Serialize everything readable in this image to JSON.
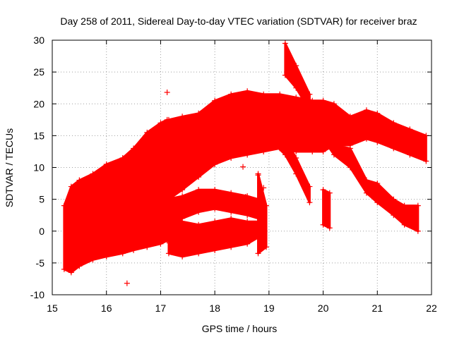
{
  "chart_data": {
    "type": "scatter",
    "title": "Day 258 of 2011, Sidereal Day-to-day VTEC variation (SDTVAR) for receiver braz",
    "xlabel": "GPS time / hours",
    "ylabel": "SDTVAR / TECUs",
    "xlim": [
      15,
      22
    ],
    "ylim": [
      -10,
      30
    ],
    "xticks": [
      "15",
      "16",
      "17",
      "18",
      "19",
      "20",
      "21",
      "22"
    ],
    "yticks": [
      "-10",
      "-5",
      "0",
      "5",
      "10",
      "15",
      "20",
      "25",
      "30"
    ],
    "grid": true,
    "legend": "none",
    "marker": "plus",
    "color": "#ff0000",
    "series": [
      {
        "bands": [
          [
            15.22,
            -6.0,
            4.0
          ],
          [
            15.35,
            -6.5,
            7.0
          ],
          [
            15.5,
            -5.5,
            8.0
          ],
          [
            15.75,
            -4.5,
            9.0
          ],
          [
            16.0,
            -4.0,
            10.5
          ],
          [
            16.3,
            -3.5,
            11.5
          ],
          [
            16.5,
            -3.0,
            13.0
          ],
          [
            16.75,
            -2.5,
            15.5
          ],
          [
            17.0,
            -2.0,
            17.0
          ],
          [
            17.12,
            -1.5,
            17.5
          ]
        ]
      },
      {
        "bands": [
          [
            17.15,
            5.0,
            17.5
          ],
          [
            17.4,
            6.5,
            18.0
          ],
          [
            17.7,
            8.5,
            18.5
          ],
          [
            18.0,
            10.5,
            20.5
          ],
          [
            18.3,
            11.5,
            21.5
          ],
          [
            18.6,
            12.0,
            22.0
          ],
          [
            18.9,
            12.5,
            21.5
          ],
          [
            19.2,
            13.0,
            21.5
          ],
          [
            19.5,
            12.5,
            21.0
          ],
          [
            19.8,
            12.5,
            20.5
          ],
          [
            20.0,
            12.5,
            20.5
          ],
          [
            20.2,
            13.5,
            20.0
          ],
          [
            20.5,
            13.5,
            18.0
          ],
          [
            20.8,
            14.5,
            19.0
          ],
          [
            21.0,
            14.0,
            18.5
          ],
          [
            21.3,
            13.0,
            17.0
          ],
          [
            21.6,
            12.0,
            16.0
          ],
          [
            21.9,
            11.0,
            15.0
          ]
        ]
      },
      {
        "bands": [
          [
            17.15,
            -3.5,
            2.5
          ],
          [
            17.4,
            -4.0,
            1.5
          ],
          [
            17.7,
            -3.5,
            1.0
          ],
          [
            18.0,
            -3.0,
            1.5
          ],
          [
            18.3,
            -2.5,
            2.0
          ],
          [
            18.6,
            -2.0,
            1.5
          ],
          [
            18.8,
            -1.0,
            1.5
          ]
        ]
      },
      {
        "bands": [
          [
            17.12,
            0.0,
            5.0
          ],
          [
            17.4,
            2.0,
            5.5
          ],
          [
            17.7,
            3.0,
            6.5
          ],
          [
            18.0,
            3.5,
            6.5
          ],
          [
            18.3,
            3.0,
            6.0
          ],
          [
            18.6,
            2.5,
            5.5
          ],
          [
            18.8,
            2.0,
            5.0
          ]
        ]
      },
      {
        "bands": [
          [
            18.8,
            -3.5,
            9.0
          ],
          [
            18.95,
            -2.5,
            4.0
          ]
        ]
      },
      {
        "bands": [
          [
            19.0,
            14.5,
            16.0
          ],
          [
            19.3,
            12.0,
            14.5
          ],
          [
            19.5,
            9.0,
            11.5
          ],
          [
            19.75,
            4.5,
            7.0
          ]
        ]
      },
      {
        "bands": [
          [
            19.3,
            24.5,
            29.5
          ],
          [
            19.5,
            22.5,
            26.0
          ],
          [
            19.75,
            19.0,
            21.5
          ]
        ]
      },
      {
        "bands": [
          [
            19.8,
            15.5,
            17.0
          ],
          [
            20.0,
            14.5,
            16.0
          ],
          [
            20.2,
            12.0,
            13.5
          ],
          [
            20.5,
            10.0,
            13.0
          ],
          [
            20.8,
            6.0,
            8.0
          ],
          [
            21.0,
            4.5,
            7.5
          ],
          [
            21.3,
            2.5,
            5.0
          ],
          [
            21.5,
            1.0,
            4.0
          ],
          [
            21.75,
            0.0,
            4.0
          ]
        ]
      },
      {
        "bands": [
          [
            20.0,
            1.0,
            6.5
          ],
          [
            20.12,
            0.5,
            6.0
          ]
        ]
      },
      {
        "points": [
          [
            16.38,
            -8.2
          ],
          [
            17.12,
            21.8
          ],
          [
            18.52,
            10.1
          ],
          [
            18.57,
            5.4
          ],
          [
            18.8,
            8.8
          ],
          [
            18.9,
            6.8
          ]
        ]
      }
    ]
  }
}
